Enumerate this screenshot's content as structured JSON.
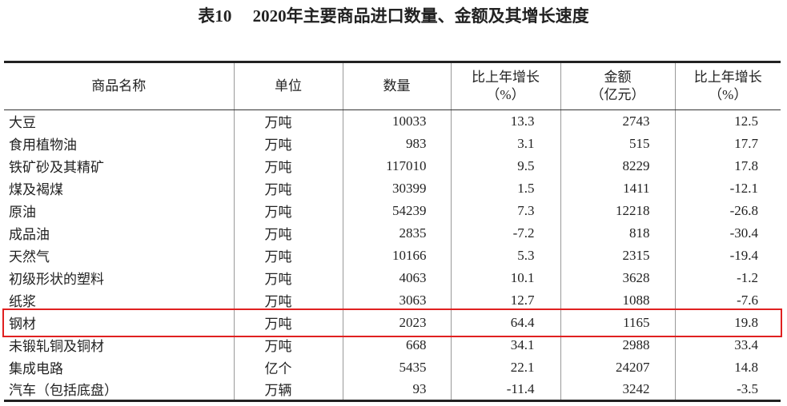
{
  "header": {
    "title": "表10　 2020年主要商品进口数量、金额及其增长速度"
  },
  "table": {
    "columns": [
      [
        "商品名称"
      ],
      [
        "单位"
      ],
      [
        "数量"
      ],
      [
        "比上年增长",
        "（%）"
      ],
      [
        "金额",
        "（亿元）"
      ],
      [
        "比上年增长",
        "（%）"
      ]
    ],
    "rows": [
      [
        "大豆",
        "万吨",
        10033,
        13.3,
        2743,
        12.5
      ],
      [
        "食用植物油",
        "万吨",
        983,
        3.1,
        515,
        17.7
      ],
      [
        "铁矿砂及其精矿",
        "万吨",
        117010,
        9.5,
        8229,
        17.8
      ],
      [
        "煤及褐煤",
        "万吨",
        30399,
        1.5,
        1411,
        -12.1
      ],
      [
        "原油",
        "万吨",
        54239,
        7.3,
        12218,
        -26.8
      ],
      [
        "成品油",
        "万吨",
        2835,
        -7.2,
        818,
        -30.4
      ],
      [
        "天然气",
        "万吨",
        10166,
        5.3,
        2315,
        -19.4
      ],
      [
        "初级形状的塑料",
        "万吨",
        4063,
        10.1,
        3628,
        -1.2
      ],
      [
        "纸浆",
        "万吨",
        3063,
        12.7,
        1088,
        -7.6
      ],
      [
        "钢材",
        "万吨",
        2023,
        64.4,
        1165,
        19.8
      ],
      [
        "未锻轧铜及铜材",
        "万吨",
        668,
        34.1,
        2988,
        33.4
      ],
      [
        "集成电路",
        "亿个",
        5435,
        22.1,
        24207,
        14.8
      ],
      [
        "汽车（包括底盘）",
        "万辆",
        93,
        -11.4,
        3242,
        -3.5
      ]
    ],
    "highlighted_row": 9
  }
}
